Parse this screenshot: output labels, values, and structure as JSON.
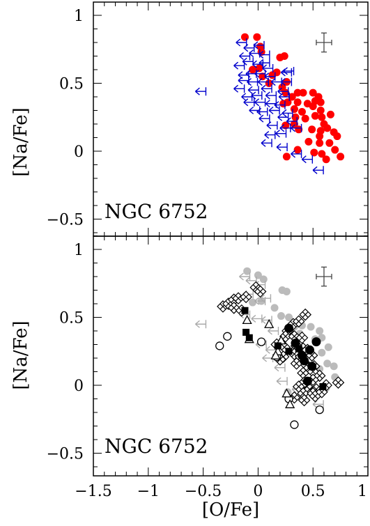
{
  "chart_data": [
    {
      "type": "scatter",
      "title": "",
      "panel_label": "NGC 6752",
      "xlabel": "",
      "ylabel": "[Na/Fe]",
      "xlim": [
        -1.5,
        1.0
      ],
      "ylim": [
        -0.6,
        1.1
      ],
      "yticks": [
        "1",
        "0.5",
        "0",
        "−0.5"
      ],
      "error_bar": {
        "x": 0.6,
        "y": 0.8,
        "xerr": 0.07,
        "yerr": 0.07
      },
      "colors": {
        "measured": "#ff0000",
        "upper_limit": "#0000cc"
      },
      "series": [
        {
          "marker": "red-filled-circle",
          "points": [
            [
              -0.12,
              0.84
            ],
            [
              -0.01,
              0.84
            ],
            [
              0.02,
              0.77
            ],
            [
              0.03,
              0.73
            ],
            [
              0.2,
              0.69
            ],
            [
              0.24,
              0.7
            ],
            [
              -0.05,
              0.6
            ],
            [
              0.01,
              0.61
            ],
            [
              0.04,
              0.55
            ],
            [
              0.13,
              0.56
            ],
            [
              0.17,
              0.58
            ],
            [
              0.26,
              0.51
            ],
            [
              0.1,
              0.5
            ],
            [
              0.22,
              0.47
            ],
            [
              0.25,
              0.43
            ],
            [
              0.31,
              0.4
            ],
            [
              0.36,
              0.43
            ],
            [
              0.41,
              0.43
            ],
            [
              0.5,
              0.43
            ],
            [
              0.55,
              0.4
            ],
            [
              0.27,
              0.36
            ],
            [
              0.36,
              0.36
            ],
            [
              0.45,
              0.35
            ],
            [
              0.52,
              0.37
            ],
            [
              0.57,
              0.36
            ],
            [
              0.23,
              0.35
            ],
            [
              0.33,
              0.31
            ],
            [
              0.4,
              0.29
            ],
            [
              0.5,
              0.33
            ],
            [
              0.57,
              0.3
            ],
            [
              0.34,
              0.25
            ],
            [
              0.43,
              0.24
            ],
            [
              0.52,
              0.26
            ],
            [
              0.58,
              0.25
            ],
            [
              0.6,
              0.2
            ],
            [
              0.66,
              0.27
            ],
            [
              0.25,
              0.19
            ],
            [
              0.33,
              0.2
            ],
            [
              0.37,
              0.16
            ],
            [
              0.49,
              0.16
            ],
            [
              0.57,
              0.15
            ],
            [
              0.63,
              0.17
            ],
            [
              0.69,
              0.14
            ],
            [
              0.56,
              0.11
            ],
            [
              0.72,
              0.11
            ],
            [
              0.46,
              0.07
            ],
            [
              0.56,
              0.06
            ],
            [
              0.65,
              0.06
            ],
            [
              0.7,
              0.01
            ],
            [
              0.36,
              0.01
            ],
            [
              0.51,
              -0.01
            ],
            [
              0.58,
              -0.02
            ],
            [
              0.26,
              -0.04
            ],
            [
              0.62,
              -0.06
            ],
            [
              0.75,
              -0.04
            ]
          ]
        },
        {
          "marker": "blue-upper-limit",
          "points": [
            [
              -0.52,
              0.44
            ],
            [
              -0.15,
              0.8
            ],
            [
              -0.08,
              0.76
            ],
            [
              0.01,
              0.78
            ],
            [
              -0.12,
              0.7
            ],
            [
              -0.03,
              0.72
            ],
            [
              0.06,
              0.71
            ],
            [
              -0.09,
              0.66
            ],
            [
              0.0,
              0.64
            ],
            [
              0.06,
              0.65
            ],
            [
              -0.17,
              0.63
            ],
            [
              0.09,
              0.61
            ],
            [
              0.28,
              0.59
            ],
            [
              -0.13,
              0.56
            ],
            [
              -0.06,
              0.57
            ],
            [
              0.02,
              0.57
            ],
            [
              0.11,
              0.55
            ],
            [
              0.26,
              0.58
            ],
            [
              -0.13,
              0.52
            ],
            [
              -0.05,
              0.51
            ],
            [
              0.05,
              0.51
            ],
            [
              0.17,
              0.51
            ],
            [
              0.26,
              0.51
            ],
            [
              -0.17,
              0.46
            ],
            [
              -0.04,
              0.45
            ],
            [
              0.08,
              0.46
            ],
            [
              0.23,
              0.44
            ],
            [
              -0.1,
              0.4
            ],
            [
              -0.01,
              0.41
            ],
            [
              0.12,
              0.41
            ],
            [
              0.24,
              0.4
            ],
            [
              -0.08,
              0.36
            ],
            [
              0.02,
              0.36
            ],
            [
              0.12,
              0.35
            ],
            [
              0.2,
              0.34
            ],
            [
              -0.03,
              0.3
            ],
            [
              0.04,
              0.29
            ],
            [
              0.15,
              0.3
            ],
            [
              0.27,
              0.28
            ],
            [
              0.06,
              0.24
            ],
            [
              0.23,
              0.25
            ],
            [
              0.31,
              0.22
            ],
            [
              0.13,
              0.19
            ],
            [
              0.25,
              0.17
            ],
            [
              0.35,
              0.17
            ],
            [
              0.11,
              0.12
            ],
            [
              0.21,
              0.13
            ],
            [
              0.08,
              0.06
            ],
            [
              0.22,
              0.03
            ],
            [
              0.35,
              -0.02
            ],
            [
              0.45,
              -0.06
            ],
            [
              0.55,
              -0.14
            ]
          ]
        }
      ]
    },
    {
      "type": "scatter",
      "title": "",
      "panel_label": "NGC 6752",
      "xlabel": "[O/Fe]",
      "ylabel": "[Na/Fe]",
      "xlim": [
        -1.5,
        1.0
      ],
      "ylim": [
        -0.6,
        1.1
      ],
      "xticks": [
        "−1.5",
        "−1",
        "−0.5",
        "0",
        "0.5",
        "1"
      ],
      "yticks": [
        "1",
        "0.5",
        "0",
        "−0.5"
      ],
      "error_bar": {
        "x": 0.6,
        "y": 0.8,
        "xerr": 0.07,
        "yerr": 0.07
      },
      "colors": {
        "background": "#bbbbbb"
      },
      "series": [
        {
          "marker": "open-diamond",
          "points": [
            [
              -0.32,
              0.58
            ],
            [
              -0.27,
              0.6
            ],
            [
              -0.22,
              0.63
            ],
            [
              -0.18,
              0.64
            ],
            [
              -0.11,
              0.65
            ],
            [
              -0.02,
              0.72
            ],
            [
              0.02,
              0.69
            ],
            [
              -0.22,
              0.57
            ],
            [
              -0.15,
              0.55
            ],
            [
              0.27,
              0.4
            ],
            [
              0.32,
              0.45
            ],
            [
              0.37,
              0.47
            ],
            [
              0.43,
              0.52
            ],
            [
              0.25,
              0.36
            ],
            [
              0.33,
              0.36
            ],
            [
              0.4,
              0.35
            ],
            [
              0.17,
              0.3
            ],
            [
              0.24,
              0.28
            ],
            [
              0.35,
              0.29
            ],
            [
              0.41,
              0.27
            ],
            [
              0.45,
              0.26
            ],
            [
              0.23,
              0.21
            ],
            [
              0.33,
              0.23
            ],
            [
              0.39,
              0.21
            ],
            [
              0.49,
              0.22
            ],
            [
              0.35,
              0.16
            ],
            [
              0.44,
              0.15
            ],
            [
              0.51,
              0.14
            ],
            [
              0.41,
              0.09
            ],
            [
              0.5,
              0.1
            ],
            [
              0.56,
              0.07
            ],
            [
              0.5,
              0.04
            ],
            [
              0.42,
              0.02
            ],
            [
              0.37,
              -0.01
            ],
            [
              0.47,
              -0.03
            ],
            [
              0.53,
              -0.03
            ],
            [
              0.41,
              -0.06
            ],
            [
              0.5,
              -0.06
            ],
            [
              0.33,
              -0.09
            ],
            [
              0.42,
              -0.11
            ],
            [
              0.52,
              -0.08
            ],
            [
              0.58,
              -0.05
            ],
            [
              0.62,
              0.0
            ],
            [
              0.73,
              0.02
            ],
            [
              0.2,
              0.19
            ]
          ]
        },
        {
          "marker": "filled-square",
          "points": [
            [
              -0.12,
              0.55
            ],
            [
              -0.11,
              0.39
            ],
            [
              -0.08,
              0.35
            ],
            [
              0.18,
              0.29
            ],
            [
              0.28,
              0.25
            ],
            [
              0.37,
              0.27
            ],
            [
              0.59,
              -0.01
            ]
          ]
        },
        {
          "marker": "filled-circle",
          "points": [
            [
              0.28,
              0.42
            ],
            [
              0.34,
              0.31
            ],
            [
              0.47,
              0.26
            ],
            [
              0.53,
              0.32
            ],
            [
              0.4,
              0.22
            ],
            [
              0.42,
              0.18
            ],
            [
              0.49,
              0.14
            ],
            [
              0.45,
              0.03
            ]
          ]
        },
        {
          "marker": "open-triangle",
          "points": [
            [
              -0.1,
              0.48
            ],
            [
              0.1,
              0.45
            ],
            [
              -0.08,
              0.34
            ],
            [
              0.21,
              0.33
            ],
            [
              0.18,
              0.25
            ],
            [
              0.16,
              0.22
            ],
            [
              0.26,
              -0.06
            ],
            [
              0.29,
              -0.14
            ]
          ]
        },
        {
          "marker": "open-circle",
          "points": [
            [
              -0.35,
              0.29
            ],
            [
              -0.28,
              0.36
            ],
            [
              0.03,
              0.32
            ],
            [
              0.17,
              0.21
            ],
            [
              0.28,
              -0.1
            ],
            [
              0.33,
              -0.29
            ],
            [
              0.56,
              -0.18
            ]
          ]
        },
        {
          "marker": "gray-filled-circle",
          "points": [
            [
              -0.1,
              0.84
            ],
            [
              0.0,
              0.81
            ],
            [
              0.05,
              0.78
            ],
            [
              0.22,
              0.7
            ],
            [
              0.26,
              0.69
            ],
            [
              -0.05,
              0.61
            ],
            [
              0.03,
              0.62
            ],
            [
              0.15,
              0.57
            ],
            [
              0.21,
              0.51
            ],
            [
              0.28,
              0.5
            ],
            [
              0.33,
              0.43
            ],
            [
              0.4,
              0.44
            ],
            [
              0.48,
              0.43
            ],
            [
              0.56,
              0.4
            ],
            [
              0.58,
              0.35
            ],
            [
              0.64,
              0.28
            ],
            [
              0.63,
              0.16
            ],
            [
              0.69,
              0.14
            ],
            [
              0.7,
              0.06
            ],
            [
              0.73,
              0.02
            ],
            [
              0.62,
              -0.02
            ],
            [
              0.58,
              0.24
            ],
            [
              0.56,
              0.12
            ],
            [
              0.52,
              0.34
            ],
            [
              0.38,
              0.38
            ],
            [
              0.27,
              -0.05
            ]
          ]
        },
        {
          "marker": "gray-upper-limit",
          "points": [
            [
              -0.52,
              0.45
            ],
            [
              -0.12,
              0.8
            ],
            [
              -0.06,
              0.77
            ],
            [
              0.02,
              0.74
            ],
            [
              -0.09,
              0.67
            ],
            [
              0.02,
              0.62
            ],
            [
              0.07,
              0.64
            ],
            [
              -0.12,
              0.52
            ],
            [
              -0.01,
              0.49
            ],
            [
              0.08,
              0.48
            ],
            [
              0.14,
              0.4
            ],
            [
              0.03,
              0.3
            ],
            [
              0.12,
              0.26
            ],
            [
              0.09,
              0.2
            ],
            [
              0.2,
              0.13
            ],
            [
              0.22,
              0.03
            ],
            [
              0.36,
              -0.03
            ],
            [
              0.46,
              -0.06
            ],
            [
              0.55,
              -0.14
            ]
          ]
        }
      ]
    }
  ]
}
